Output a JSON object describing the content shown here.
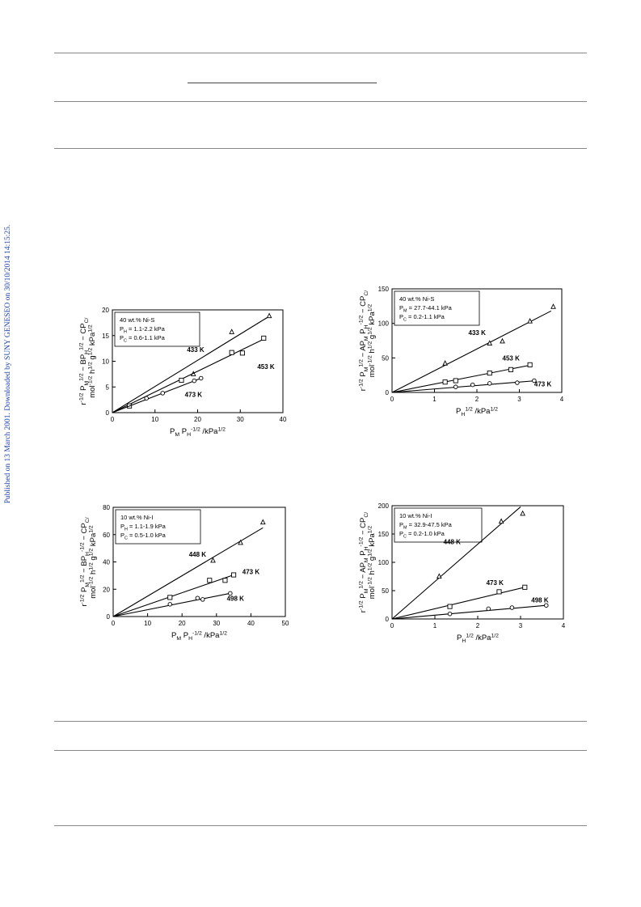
{
  "sidebar_text": "Published on 13 March 2001. Downloaded by SUNY GENESEO on 30/10/2014 14:15:25.",
  "chart_data": [
    {
      "type": "scatter",
      "id": "plot1",
      "legend": [
        "40 wt.% Ni-S",
        "P_H = 1.1-2.2 kPa",
        "P_C = 0.6-1.1 kPa"
      ],
      "xlim": [
        0,
        40
      ],
      "ylim": [
        0,
        20
      ],
      "xticks": [
        0,
        10,
        20,
        30,
        40
      ],
      "yticks": [
        0,
        5,
        10,
        15,
        20
      ],
      "xlabel": "P_M P_H^-1/2 /kPa^1/2",
      "ylabel": "r^-1/2 P_M^1/2 − BP_H^1/2 − CP_C / mol^-1/2 h^1/2 g^1/2 kPa^1/2",
      "series": [
        {
          "name": "433 K",
          "marker": "triangle",
          "points": [
            [
              28,
              15.7
            ],
            [
              36.8,
              18.8
            ],
            [
              19,
              7.5
            ]
          ],
          "line": [
            [
              0,
              0
            ],
            [
              36.5,
              18.6
            ]
          ],
          "label_at": [
            17.5,
            11.8
          ]
        },
        {
          "name": "453 K",
          "marker": "square",
          "points": [
            [
              4,
              1.3
            ],
            [
              16.2,
              6.3
            ],
            [
              28,
              11.7
            ],
            [
              30.5,
              11.6
            ],
            [
              35.5,
              14.5
            ]
          ],
          "line": [
            [
              0,
              0
            ],
            [
              36,
              14.5
            ]
          ],
          "label_at": [
            34,
            8.5
          ]
        },
        {
          "name": "473 K",
          "marker": "circle",
          "points": [
            [
              8,
              2.8
            ],
            [
              11.8,
              3.8
            ],
            [
              19.2,
              6.2
            ],
            [
              20.8,
              6.7
            ]
          ],
          "line": [
            [
              0,
              0
            ],
            [
              20.8,
              6.7
            ]
          ],
          "label_at": [
            17,
            3.1
          ]
        }
      ]
    },
    {
      "type": "scatter",
      "id": "plot2",
      "legend": [
        "40 wt.% Ni-S",
        "P_M = 27.7-44.1 kPa",
        "P_C = 0.2-1.1 kPa"
      ],
      "xlim": [
        0,
        4
      ],
      "ylim": [
        0,
        150
      ],
      "xticks": [
        0,
        1,
        2,
        3,
        4
      ],
      "yticks": [
        0,
        50,
        100,
        150
      ],
      "xlabel": "P_H^1/2 /kPa^1/2",
      "ylabel": "r^-1/2 P_M^1/2 − AP_M P_H^-1/2 − CP_C / mol^-1/2 h^1/2 g^1/2 kPa^1/2",
      "series": [
        {
          "name": "433 K",
          "marker": "triangle",
          "points": [
            [
              1.25,
              42
            ],
            [
              2.3,
              71
            ],
            [
              2.6,
              74
            ],
            [
              3.25,
              103
            ],
            [
              3.8,
              124
            ]
          ],
          "line": [
            [
              0,
              0
            ],
            [
              3.75,
              118
            ]
          ],
          "label_at": [
            1.8,
            83
          ]
        },
        {
          "name": "453 K",
          "marker": "square",
          "points": [
            [
              1.25,
              15
            ],
            [
              1.5,
              17
            ],
            [
              2.3,
              28
            ],
            [
              2.8,
              33
            ],
            [
              3.25,
              40
            ]
          ],
          "line": [
            [
              0,
              0
            ],
            [
              3.3,
              40
            ]
          ],
          "label_at": [
            2.6,
            46
          ]
        },
        {
          "name": "473 K",
          "marker": "circle",
          "points": [
            [
              1.5,
              8
            ],
            [
              1.9,
              11
            ],
            [
              2.3,
              13
            ],
            [
              2.95,
              14
            ],
            [
              3.35,
              17
            ]
          ],
          "line": [
            [
              0,
              0
            ],
            [
              3.4,
              17
            ]
          ],
          "label_at": [
            3.35,
            9
          ]
        }
      ]
    },
    {
      "type": "scatter",
      "id": "plot3",
      "legend": [
        "10 wt.% Ni-I",
        "P_H = 1.1-1.9 kPa",
        "P_C = 0.5-1.0 kPa"
      ],
      "xlim": [
        0,
        50
      ],
      "ylim": [
        0,
        80
      ],
      "xticks": [
        0,
        10,
        20,
        30,
        40,
        50
      ],
      "yticks": [
        0,
        20,
        40,
        60,
        80
      ],
      "xlabel": "P_M P_H^-1/2 /kPa^1/2",
      "ylabel": "r^-1/2 P_M^1/2 − BP_H^-1/2 − CP_C / mol^-1/2 h^1/2 g^1/2 kPa^1/2",
      "series": [
        {
          "name": "448 K",
          "marker": "triangle",
          "points": [
            [
              29,
              41
            ],
            [
              37,
              54
            ],
            [
              43.5,
              69
            ]
          ],
          "line": [
            [
              0,
              0
            ],
            [
              43.5,
              65
            ]
          ],
          "label_at": [
            22,
            44
          ]
        },
        {
          "name": "473 K",
          "marker": "square",
          "points": [
            [
              16.5,
              14
            ],
            [
              28,
              26.5
            ],
            [
              32.5,
              26.5
            ],
            [
              35,
              30.5
            ]
          ],
          "line": [
            [
              0,
              0
            ],
            [
              35,
              30.5
            ]
          ],
          "label_at": [
            37.5,
            31
          ]
        },
        {
          "name": "498 K",
          "marker": "circle",
          "points": [
            [
              16.5,
              9
            ],
            [
              24.5,
              13.5
            ],
            [
              26,
              12.5
            ],
            [
              34,
              17
            ]
          ],
          "line": [
            [
              0,
              0
            ],
            [
              34,
              17
            ]
          ],
          "label_at": [
            33,
            11.5
          ]
        }
      ]
    },
    {
      "type": "scatter",
      "id": "plot4",
      "legend": [
        "10 wt.% Ni-I",
        "P_M = 32.9-47.5 kPa",
        "P_C = 0.2-1.0 kPa"
      ],
      "xlim": [
        0,
        4
      ],
      "ylim": [
        0,
        200
      ],
      "xticks": [
        0,
        1,
        2,
        3,
        4
      ],
      "yticks": [
        0,
        50,
        100,
        150,
        200
      ],
      "xlabel": "P_H^1/2 /kPa^1/2",
      "ylabel": "r^-1/2 P_M^1/2 − AP_M P_H^-1/2 − CP_C / mol^-1/2 h^1/2 g^1/2 kPa^1/2",
      "series": [
        {
          "name": "448 K",
          "marker": "triangle",
          "points": [
            [
              1.1,
              75
            ],
            [
              2.55,
              172
            ],
            [
              3.05,
              186
            ]
          ],
          "line": [
            [
              0,
              0
            ],
            [
              3.0,
              198
            ]
          ],
          "label_at": [
            1.2,
            132
          ]
        },
        {
          "name": "473 K",
          "marker": "square",
          "points": [
            [
              1.35,
              22
            ],
            [
              2.5,
              48
            ],
            [
              3.1,
              56
            ]
          ],
          "line": [
            [
              0,
              0
            ],
            [
              3.1,
              56
            ]
          ],
          "label_at": [
            2.2,
            60
          ]
        },
        {
          "name": "498 K",
          "marker": "circle",
          "points": [
            [
              1.35,
              9
            ],
            [
              2.25,
              18
            ],
            [
              2.8,
              20
            ],
            [
              3.6,
              24
            ]
          ],
          "line": [
            [
              0,
              0
            ],
            [
              3.6,
              24
            ]
          ],
          "label_at": [
            3.25,
            29
          ]
        }
      ]
    }
  ]
}
